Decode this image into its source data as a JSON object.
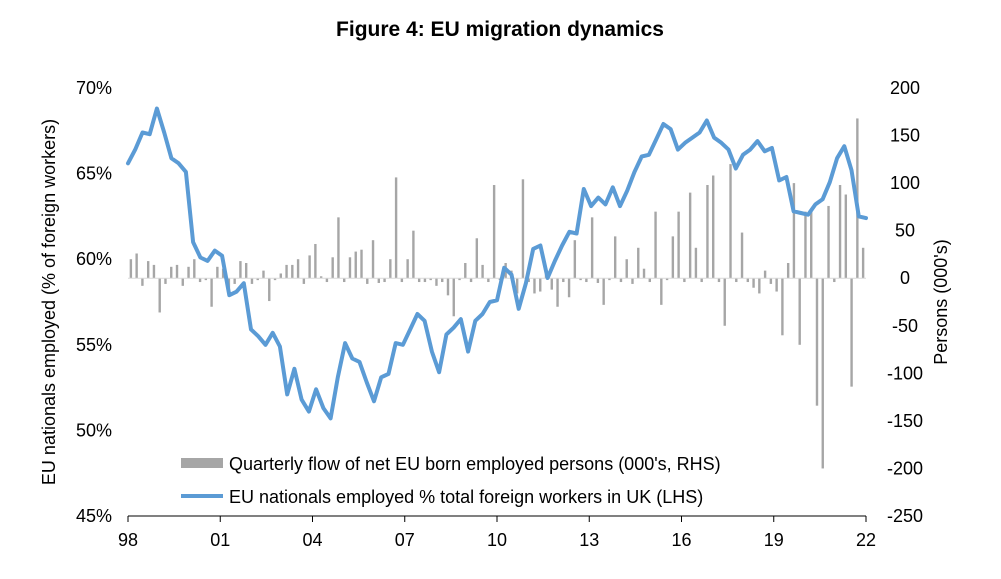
{
  "chart_data": {
    "type": "bar+line",
    "title": "Figure 4: EU migration dynamics",
    "ylabel_left": "EU nationals employed (% of foreign workers)",
    "ylabel_right": "Persons (000's)",
    "y_left_ticks": [
      "70%",
      "65%",
      "60%",
      "55%",
      "50%",
      "45%"
    ],
    "y_right_ticks": [
      "200",
      "150",
      "100",
      "50",
      "0",
      "-50",
      "-100",
      "-150",
      "-200",
      "-250"
    ],
    "x_ticks": [
      "98",
      "01",
      "04",
      "07",
      "10",
      "13",
      "16",
      "19",
      "22"
    ],
    "ylim_left": [
      45,
      70
    ],
    "ylim_right": [
      -250,
      200
    ],
    "x_start_year": 1998,
    "x_end_year": 2022,
    "colors": {
      "bars": "#a6a6a6",
      "line": "#5b9bd5",
      "axis": "#000000"
    },
    "series": [
      {
        "name": "Quarterly flow of net EU born employed persons (000's, RHS)",
        "type": "bar",
        "values": [
          20,
          26,
          -8,
          18,
          14,
          -36,
          -6,
          12,
          14,
          -8,
          12,
          20,
          -4,
          -2,
          -30,
          12,
          10,
          -14,
          -6,
          18,
          16,
          -6,
          -2,
          8,
          -24,
          -2,
          5,
          14,
          14,
          20,
          -6,
          24,
          36,
          2,
          -4,
          22,
          64,
          -4,
          22,
          28,
          30,
          -6,
          40,
          -5,
          -4,
          20,
          106,
          -4,
          20,
          50,
          -4,
          -4,
          -2,
          -8,
          -4,
          -18,
          -40,
          -2,
          16,
          -4,
          42,
          14,
          -4,
          98,
          -2,
          16,
          8,
          -16,
          104,
          -4,
          -16,
          -14,
          4,
          -12,
          -30,
          -4,
          -20,
          40,
          -2,
          -4,
          64,
          -5,
          -28,
          -2,
          44,
          -4,
          20,
          -6,
          32,
          10,
          -4,
          70,
          -28,
          -2,
          44,
          70,
          -4,
          90,
          32,
          -4,
          98,
          108,
          -4,
          -50,
          120,
          -4,
          48,
          -4,
          -10,
          -16,
          8,
          -6,
          -14,
          -60,
          16,
          100,
          -70,
          70,
          72,
          -134,
          -200,
          76,
          -4,
          98,
          88,
          -114,
          168,
          32
        ],
        "label_color": "#a6a6a6"
      },
      {
        "name": "EU nationals employed % total foreign workers in UK (LHS)",
        "type": "line",
        "values": [
          65.6,
          66.4,
          67.4,
          67.3,
          68.8,
          67.4,
          65.9,
          65.6,
          65.1,
          61.0,
          60.1,
          59.9,
          60.5,
          60.2,
          57.9,
          58.1,
          58.6,
          55.9,
          55.5,
          55.0,
          55.7,
          54.9,
          52.1,
          53.6,
          51.8,
          51.1,
          52.4,
          51.3,
          50.7,
          53.1,
          55.1,
          54.2,
          54.0,
          52.8,
          51.7,
          53.1,
          53.3,
          55.1,
          55.0,
          55.9,
          56.8,
          56.4,
          54.6,
          53.4,
          55.6,
          56.0,
          56.5,
          54.6,
          56.4,
          56.8,
          57.5,
          57.6,
          59.5,
          59.1,
          57.1,
          58.6,
          60.6,
          60.8,
          58.9,
          59.9,
          60.8,
          61.6,
          61.5,
          64.1,
          63.1,
          63.6,
          63.2,
          64.2,
          63.1,
          64.0,
          65.1,
          66.0,
          66.1,
          67.0,
          67.9,
          67.6,
          66.4,
          66.8,
          67.1,
          67.4,
          68.1,
          67.1,
          66.8,
          66.4,
          65.3,
          66.1,
          66.4,
          66.9,
          66.3,
          66.5,
          64.6,
          64.8,
          62.8,
          62.7,
          62.6,
          63.2,
          63.5,
          64.5,
          65.9,
          66.6,
          65.2,
          62.5,
          62.4
        ]
      }
    ],
    "legend": {
      "bar_label": "Quarterly flow of net EU born employed persons (000's, RHS)",
      "line_label": "EU nationals employed % total foreign workers in UK (LHS)"
    }
  }
}
